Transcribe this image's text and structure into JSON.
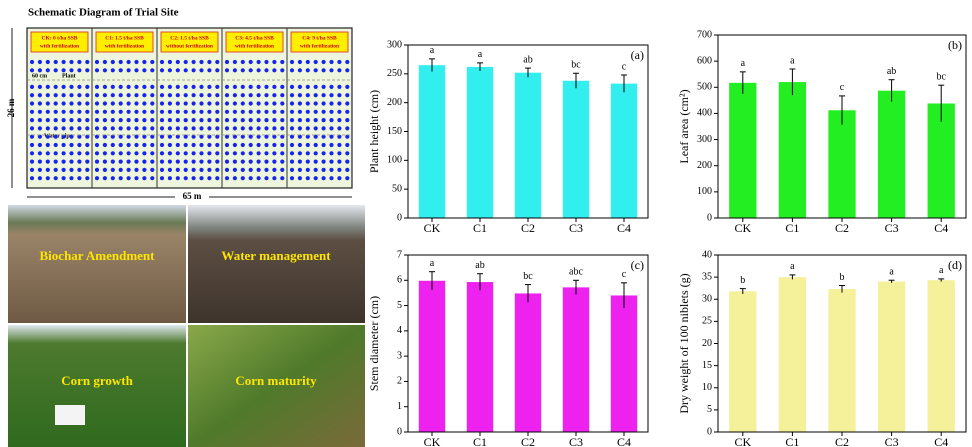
{
  "schematic": {
    "title": "Schematic Diagram of Trial Site",
    "plots": [
      {
        "name": "CK: 0 t/ha SSB",
        "note": "with fertilization"
      },
      {
        "name": "C1: 1.5 t/ha SSB",
        "note": "with fertilization"
      },
      {
        "name": "C2: 1.5 t/ha SSB",
        "note": "without fertilization"
      },
      {
        "name": "C3: 4.5 t/ha SSB",
        "note": "with fertilization"
      },
      {
        "name": "C4: 9 t/ha SSB",
        "note": "with fertilization"
      }
    ],
    "width_label": "65 m",
    "height_label": "26 m",
    "spacing_label": "60 cm",
    "plant_label": "Plant",
    "pipe_label": "Water pipe"
  },
  "photos": [
    "Biochar Amendment",
    "Water management",
    "Corn growth",
    "Corn maturity"
  ],
  "chart_data": [
    {
      "type": "bar",
      "panel": "(a)",
      "y_label": "Plant height (cm)",
      "color": "#33eeee",
      "categories": [
        "CK",
        "C1",
        "C2",
        "C3",
        "C4"
      ],
      "values": [
        265,
        262,
        252,
        238,
        233
      ],
      "errors": [
        11,
        7,
        8,
        13,
        15
      ],
      "letters": [
        "a",
        "a",
        "ab",
        "bc",
        "c"
      ],
      "ylim": [
        0,
        300
      ],
      "yticks": [
        0,
        50,
        100,
        150,
        200,
        250,
        300
      ]
    },
    {
      "type": "bar",
      "panel": "(b)",
      "y_label": "Leaf area (cm²)",
      "color": "#22ee22",
      "categories": [
        "CK",
        "C1",
        "C2",
        "C3",
        "C4"
      ],
      "values": [
        517,
        520,
        412,
        487,
        438
      ],
      "errors": [
        42,
        50,
        55,
        42,
        70
      ],
      "letters": [
        "a",
        "a",
        "c",
        "ab",
        "bc"
      ],
      "ylim": [
        0,
        700
      ],
      "yticks": [
        0,
        100,
        200,
        300,
        400,
        500,
        600,
        700
      ]
    },
    {
      "type": "bar",
      "panel": "(c)",
      "y_label": "Stem diameter (cm)",
      "color": "#ee22ee",
      "categories": [
        "CK",
        "C1",
        "C2",
        "C3",
        "C4"
      ],
      "values": [
        5.98,
        5.93,
        5.48,
        5.72,
        5.4
      ],
      "errors": [
        0.36,
        0.33,
        0.35,
        0.28,
        0.5
      ],
      "letters": [
        "a",
        "ab",
        "bc",
        "abc",
        "c"
      ],
      "ylim": [
        0,
        7
      ],
      "yticks": [
        0,
        1,
        2,
        3,
        4,
        5,
        6,
        7
      ]
    },
    {
      "type": "bar",
      "panel": "(d)",
      "y_label": "Dry weight of 100 niblets (g)",
      "color": "#f5f09a",
      "categories": [
        "CK",
        "C1",
        "C2",
        "C3",
        "C4"
      ],
      "values": [
        31.8,
        35.0,
        32.3,
        34.0,
        34.3
      ],
      "errors": [
        0.6,
        0.5,
        0.8,
        0.3,
        0.3
      ],
      "letters": [
        "b",
        "a",
        "b",
        "a",
        "a"
      ],
      "ylim": [
        0,
        40
      ],
      "yticks": [
        0,
        5,
        10,
        15,
        20,
        25,
        30,
        35,
        40
      ]
    }
  ]
}
